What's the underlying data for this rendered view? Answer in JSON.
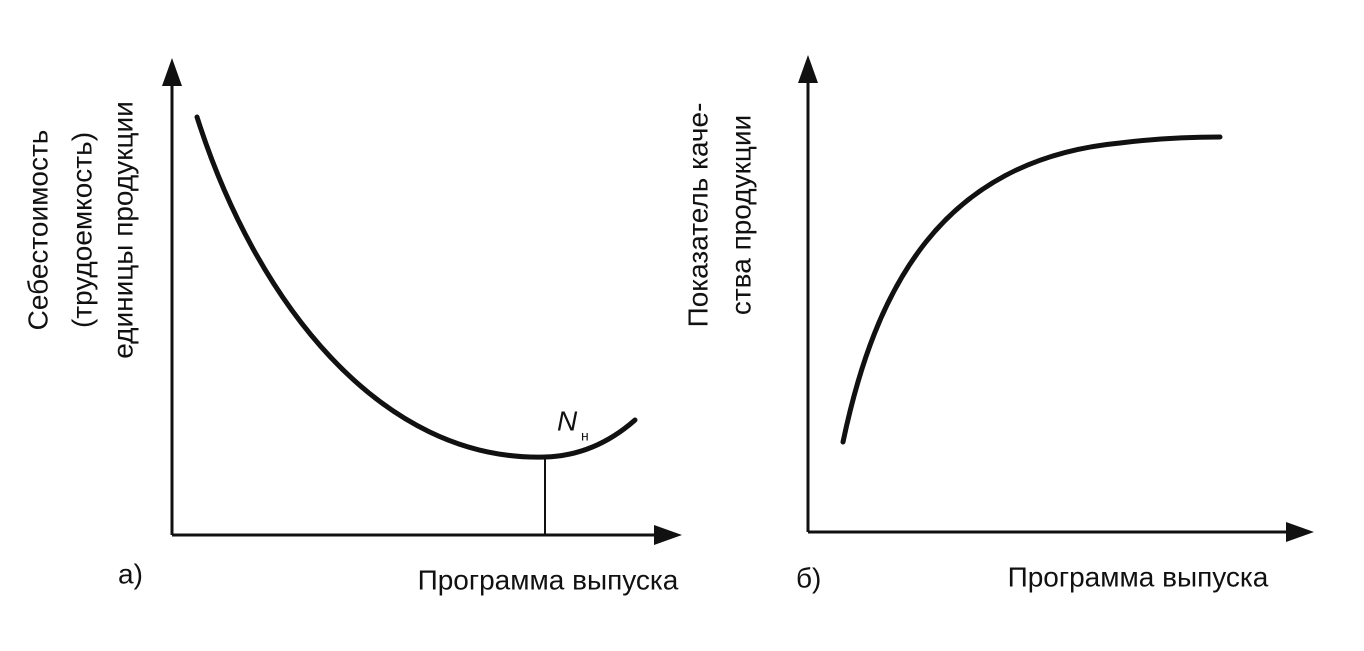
{
  "panels": [
    {
      "label": "а)",
      "y_label": [
        "Себестоимость",
        "(трудоемкость)",
        "единицы продукции"
      ],
      "x_label": "Программа выпуска",
      "point_label": {
        "main": "N",
        "sub": "н"
      }
    },
    {
      "label": "б)",
      "y_label": [
        "Показатель каче-",
        "ства продукции"
      ],
      "x_label": "Программа выпуска"
    }
  ]
}
